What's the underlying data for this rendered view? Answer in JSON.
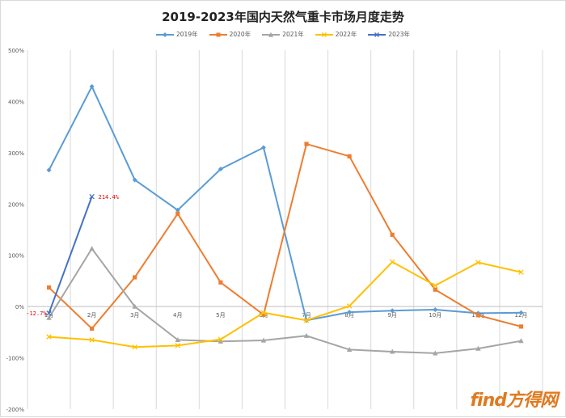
{
  "chart_data": {
    "type": "line",
    "title": "2019-2023年国内天然气重卡市场月度走势",
    "xlabel": "",
    "ylabel": "",
    "categories": [
      "1月",
      "2月",
      "3月",
      "4月",
      "5月",
      "6月",
      "7月",
      "8月",
      "9月",
      "10月",
      "11月",
      "12月"
    ],
    "ylim": [
      -200,
      500
    ],
    "ytick_values": [
      -200,
      -100,
      0,
      100,
      200,
      300,
      400,
      500
    ],
    "ytick_labels": [
      "-200%",
      "-100%",
      "0%",
      "100%",
      "200%",
      "300%",
      "400%",
      "500%"
    ],
    "grid": "vertical",
    "legend_position": "top",
    "series": [
      {
        "name": "2019年",
        "color": "#5b9bd5",
        "marker": "diamond",
        "values": [
          266,
          429,
          247,
          188,
          268,
          310,
          -27,
          -11,
          -8,
          -6,
          -13,
          -12
        ]
      },
      {
        "name": "2020年",
        "color": "#ed7d31",
        "marker": "square",
        "values": [
          37,
          -43,
          57,
          181,
          47,
          -16,
          317,
          293,
          140,
          33,
          -17,
          -39
        ]
      },
      {
        "name": "2021年",
        "color": "#a5a5a5",
        "marker": "triangle",
        "values": [
          -22,
          113,
          0,
          -65,
          -68,
          -66,
          -57,
          -84,
          -88,
          -91,
          -82,
          -67
        ]
      },
      {
        "name": "2022年",
        "color": "#ffc000",
        "marker": "x",
        "values": [
          -59,
          -65,
          -79,
          -76,
          -64,
          -12,
          -27,
          1,
          87,
          41,
          86,
          67
        ]
      },
      {
        "name": "2023年",
        "color": "#4472c4",
        "marker": "x",
        "values": [
          -12.7,
          214.4,
          null,
          null,
          null,
          null,
          null,
          null,
          null,
          null,
          null,
          null
        ]
      }
    ],
    "annotations": [
      {
        "series": "2023年",
        "index": 0,
        "text": "-12.7%",
        "color": "#e00000"
      },
      {
        "series": "2023年",
        "index": 1,
        "text": "214.4%",
        "color": "#e00000"
      }
    ]
  },
  "watermark": "find方得网"
}
